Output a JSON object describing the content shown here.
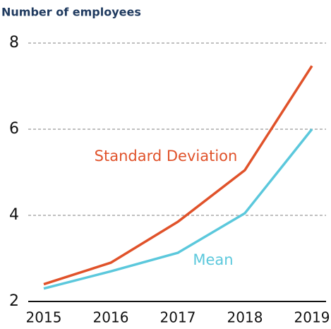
{
  "chart_data": {
    "type": "line",
    "title": "Number of employees",
    "categories": [
      "2015",
      "2016",
      "2017",
      "2018",
      "2019"
    ],
    "series": [
      {
        "name": "Standard Deviation",
        "color": "#e0522a",
        "values": [
          2.4,
          2.9,
          3.85,
          5.05,
          7.47
        ]
      },
      {
        "name": "Mean",
        "color": "#5bc8dc",
        "values": [
          2.3,
          2.7,
          3.13,
          4.05,
          6.0
        ]
      }
    ],
    "ylim": [
      2,
      8
    ],
    "yticks": [
      2,
      4,
      6,
      8
    ],
    "grid": true
  }
}
